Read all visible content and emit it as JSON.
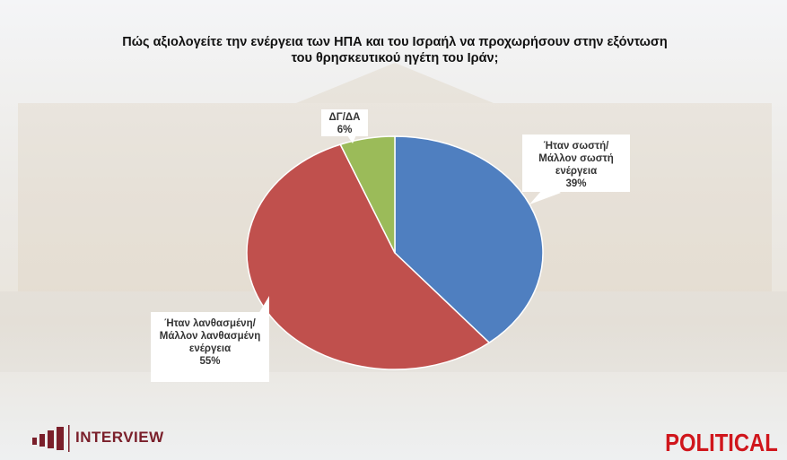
{
  "chart_data": {
    "type": "pie",
    "title": "Πώς αξιολογείτε την ενέργεια των ΗΠΑ και του Ισραήλ να προχωρήσουν στην εξόντωση του θρησκευτικού ηγέτη του Ιράν;",
    "categories": [
      "Ήταν σωστή/Μάλλον σωστή ενέργεια",
      "Ήταν λανθασμένη/Μάλλον λανθασμένη ενέργεια",
      "ΔΓ/ΔΑ"
    ],
    "values": [
      39,
      55,
      6
    ],
    "value_labels": [
      "39%",
      "55%",
      "6%"
    ],
    "colors": [
      "#4f7fc0",
      "#c0504d",
      "#9bbb59"
    ]
  },
  "logos": {
    "left": "INTERVIEW",
    "right": "POLITICAL"
  }
}
